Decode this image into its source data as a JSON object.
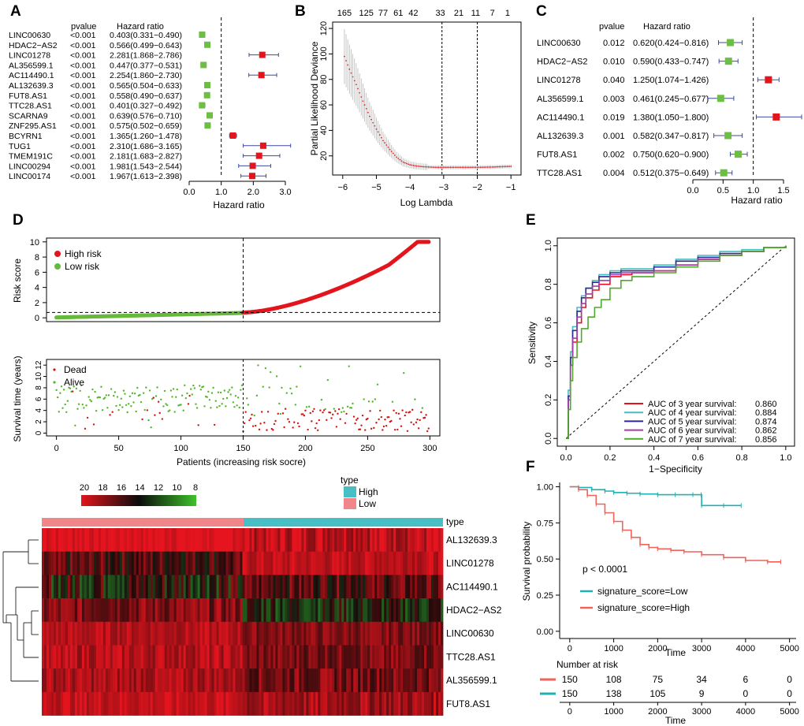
{
  "panel_labels": [
    "A",
    "B",
    "C",
    "D",
    "E",
    "F"
  ],
  "chart_data": [
    {
      "id": "A",
      "type": "forest",
      "header_pvalue": "pvalue",
      "header_hr": "Hazard ratio",
      "xlabel": "Hazard ratio",
      "xlim": [
        0,
        3
      ],
      "xticks": [
        "0.0",
        "1.0",
        "2.0",
        "3.0"
      ],
      "ref_line": 1,
      "rows": [
        {
          "gene": "LINC00630",
          "pvalue": "<0.001",
          "hr_text": "0.403(0.331−0.490)",
          "hr": 0.403,
          "lo": 0.331,
          "hi": 0.49
        },
        {
          "gene": "HDAC2−AS2",
          "pvalue": "<0.001",
          "hr_text": "0.566(0.499−0.643)",
          "hr": 0.566,
          "lo": 0.499,
          "hi": 0.643
        },
        {
          "gene": "LINC01278",
          "pvalue": "<0.001",
          "hr_text": "2.281(1.868−2.786)",
          "hr": 2.281,
          "lo": 1.868,
          "hi": 2.786
        },
        {
          "gene": "AL356599.1",
          "pvalue": "<0.001",
          "hr_text": "0.447(0.377−0.531)",
          "hr": 0.447,
          "lo": 0.377,
          "hi": 0.531
        },
        {
          "gene": "AC114490.1",
          "pvalue": "<0.001",
          "hr_text": "2.254(1.860−2.730)",
          "hr": 2.254,
          "lo": 1.86,
          "hi": 2.73
        },
        {
          "gene": "AL132639.3",
          "pvalue": "<0.001",
          "hr_text": "0.565(0.504−0.633)",
          "hr": 0.565,
          "lo": 0.504,
          "hi": 0.633
        },
        {
          "gene": "FUT8.AS1",
          "pvalue": "<0.001",
          "hr_text": "0.558(0.490−0.637)",
          "hr": 0.558,
          "lo": 0.49,
          "hi": 0.637
        },
        {
          "gene": "TTC28.AS1",
          "pvalue": "<0.001",
          "hr_text": "0.401(0.327−0.492)",
          "hr": 0.401,
          "lo": 0.327,
          "hi": 0.492
        },
        {
          "gene": "SCARNA9",
          "pvalue": "<0.001",
          "hr_text": "0.639(0.576−0.710)",
          "hr": 0.639,
          "lo": 0.576,
          "hi": 0.71
        },
        {
          "gene": "ZNF295.AS1",
          "pvalue": "<0.001",
          "hr_text": "0.575(0.502−0.659)",
          "hr": 0.575,
          "lo": 0.502,
          "hi": 0.659
        },
        {
          "gene": "BCYRN1",
          "pvalue": "<0.001",
          "hr_text": "1.365(1.260−1.478)",
          "hr": 1.365,
          "lo": 1.26,
          "hi": 1.478
        },
        {
          "gene": "TUG1",
          "pvalue": "<0.001",
          "hr_text": "2.310(1.686−3.165)",
          "hr": 2.31,
          "lo": 1.686,
          "hi": 3.165
        },
        {
          "gene": "TMEM191C",
          "pvalue": "<0.001",
          "hr_text": "2.181(1.683−2.827)",
          "hr": 2.181,
          "lo": 1.683,
          "hi": 2.827
        },
        {
          "gene": "LINC00294",
          "pvalue": "<0.001",
          "hr_text": "1.981(1.543−2.544)",
          "hr": 1.981,
          "lo": 1.543,
          "hi": 2.544
        },
        {
          "gene": "LINC00174",
          "pvalue": "<0.001",
          "hr_text": "1.967(1.613−2.398)",
          "hr": 1.967,
          "lo": 1.613,
          "hi": 2.398
        }
      ]
    },
    {
      "id": "B",
      "type": "line",
      "xlabel": "Log Lambda",
      "ylabel": "Partial Likelihood Deviance",
      "xlim": [
        -6.3,
        -0.7
      ],
      "ylim": [
        5,
        125
      ],
      "xticks": [
        -6,
        -5,
        -4,
        -3,
        -2,
        -1
      ],
      "yticks": [
        20,
        40,
        60,
        80,
        100,
        120
      ],
      "top_axis_labels": [
        "165",
        "125",
        "77",
        "61",
        "42",
        "33",
        "21",
        "11",
        "7",
        "1"
      ],
      "top_axis_x": [
        -5.95,
        -5.3,
        -4.8,
        -4.35,
        -3.9,
        -3.1,
        -2.55,
        -2.05,
        -1.55,
        -1.1
      ],
      "vlines": [
        -3.05,
        -2.0
      ],
      "curve_x": [
        -5.95,
        -5.8,
        -5.6,
        -5.4,
        -5.2,
        -5.0,
        -4.8,
        -4.6,
        -4.4,
        -4.2,
        -4.0,
        -3.8,
        -3.6,
        -3.4,
        -3.2,
        -3.0,
        -2.5,
        -2.0,
        -1.5,
        -1.0
      ],
      "curve_y": [
        98,
        88,
        76,
        63,
        51,
        41,
        32,
        25,
        19,
        15,
        13,
        12,
        11.5,
        11.2,
        11,
        11,
        11,
        11,
        11.3,
        11.8
      ]
    },
    {
      "id": "C",
      "type": "forest",
      "header_pvalue": "pvalue",
      "header_hr": "Hazard ratio",
      "xlabel": "Hazard ratio",
      "xlim": [
        0,
        1.8
      ],
      "xticks": [
        "0.0",
        "0.5",
        "1.0",
        "1.5"
      ],
      "ref_line": 1,
      "rows": [
        {
          "gene": "LINC00630",
          "pvalue": "0.012",
          "hr_text": "0.620(0.424−0.816)",
          "hr": 0.62,
          "lo": 0.424,
          "hi": 0.816
        },
        {
          "gene": "HDAC2−AS2",
          "pvalue": "0.010",
          "hr_text": "0.590(0.433−0.747)",
          "hr": 0.59,
          "lo": 0.433,
          "hi": 0.747
        },
        {
          "gene": "LINC01278",
          "pvalue": "0.040",
          "hr_text": "1.250(1.074−1.426)",
          "hr": 1.25,
          "lo": 1.074,
          "hi": 1.426
        },
        {
          "gene": "AL356599.1",
          "pvalue": "0.003",
          "hr_text": "0.461(0.245−0.677)",
          "hr": 0.461,
          "lo": 0.245,
          "hi": 0.677
        },
        {
          "gene": "AC114490.1",
          "pvalue": "0.019",
          "hr_text": "1.380(1.050−1.800)",
          "hr": 1.38,
          "lo": 1.05,
          "hi": 1.8
        },
        {
          "gene": "AL132639.3",
          "pvalue": "0.001",
          "hr_text": "0.582(0.347−0.817)",
          "hr": 0.582,
          "lo": 0.347,
          "hi": 0.817
        },
        {
          "gene": "FUT8.AS1",
          "pvalue": "0.002",
          "hr_text": "0.750(0.620−0.900)",
          "hr": 0.75,
          "lo": 0.62,
          "hi": 0.9
        },
        {
          "gene": "TTC28.AS1",
          "pvalue": "0.004",
          "hr_text": "0.512(0.375−0.649)",
          "hr": 0.512,
          "lo": 0.375,
          "hi": 0.649
        }
      ]
    },
    {
      "id": "D-risk",
      "type": "scatter",
      "ylabel": "Risk score",
      "ylim": [
        0,
        10
      ],
      "yticks": [
        0,
        2,
        4,
        6,
        8,
        10
      ],
      "n": 300,
      "cutoff": 150,
      "cutoff_score": 0.7,
      "legend": [
        "High risk",
        "Low risk"
      ]
    },
    {
      "id": "D-survival",
      "type": "scatter",
      "xlabel": "Patients (increasing risk socre)",
      "ylabel": "Survival time (years)",
      "xlim": [
        0,
        300
      ],
      "ylim": [
        0,
        12
      ],
      "xticks": [
        0,
        50,
        100,
        150,
        200,
        250,
        300
      ],
      "yticks": [
        0,
        2,
        4,
        6,
        8,
        10,
        12
      ],
      "legend": [
        "Dead",
        "Alive"
      ]
    },
    {
      "id": "D-heatmap",
      "type": "heatmap",
      "rows": [
        "AL132639.3",
        "LINC01278",
        "AC114490.1",
        "HDAC2−AS2",
        "LINC00630",
        "TTC28.AS1",
        "AL356599.1",
        "FUT8.AS1"
      ],
      "scale_ticks": [
        "20",
        "18",
        "16",
        "14",
        "12",
        "10",
        "8"
      ],
      "type_label": "type",
      "type_legend": [
        "High",
        "Low"
      ],
      "type_bar_label": "type"
    },
    {
      "id": "E",
      "type": "line",
      "xlabel": "1−Specificity",
      "ylabel": "Sensitivity",
      "xlim": [
        0,
        1
      ],
      "ylim": [
        0,
        1
      ],
      "xticks": [
        "0.0",
        "0.2",
        "0.4",
        "0.6",
        "0.8",
        "1.0"
      ],
      "yticks": [
        "0.0",
        "0.2",
        "0.4",
        "0.6",
        "0.8",
        "1.0"
      ],
      "series": [
        {
          "name": "AUC of 3 year survival:",
          "auc": "0.860",
          "color": "#e8101c",
          "x": [
            0,
            0.01,
            0.02,
            0.03,
            0.05,
            0.07,
            0.09,
            0.12,
            0.15,
            0.2,
            0.25,
            0.3,
            0.4,
            0.5,
            0.6,
            0.7,
            0.8,
            0.9,
            1
          ],
          "y": [
            0,
            0.2,
            0.38,
            0.5,
            0.6,
            0.68,
            0.73,
            0.77,
            0.8,
            0.84,
            0.85,
            0.86,
            0.87,
            0.9,
            0.93,
            0.95,
            0.97,
            0.99,
            1
          ]
        },
        {
          "name": "AUC of 4 year survival:",
          "auc": "0.884",
          "color": "#47bdbf",
          "x": [
            0,
            0.01,
            0.02,
            0.03,
            0.05,
            0.07,
            0.09,
            0.12,
            0.15,
            0.2,
            0.25,
            0.3,
            0.4,
            0.5,
            0.6,
            0.7,
            0.8,
            0.9,
            1
          ],
          "y": [
            0,
            0.25,
            0.45,
            0.58,
            0.68,
            0.74,
            0.78,
            0.82,
            0.85,
            0.87,
            0.88,
            0.88,
            0.9,
            0.93,
            0.95,
            0.97,
            0.98,
            0.99,
            1
          ]
        },
        {
          "name": "AUC of 5 year survival:",
          "auc": "0.874",
          "color": "#2b2a92",
          "x": [
            0,
            0.01,
            0.02,
            0.03,
            0.05,
            0.07,
            0.09,
            0.12,
            0.15,
            0.2,
            0.25,
            0.3,
            0.4,
            0.5,
            0.6,
            0.7,
            0.8,
            0.9,
            1
          ],
          "y": [
            0,
            0.22,
            0.42,
            0.56,
            0.66,
            0.73,
            0.78,
            0.81,
            0.84,
            0.86,
            0.87,
            0.87,
            0.89,
            0.92,
            0.94,
            0.96,
            0.97,
            0.99,
            1
          ]
        },
        {
          "name": "AUC of 6 year survival:",
          "auc": "0.862",
          "color": "#a33ea8",
          "x": [
            0,
            0.01,
            0.02,
            0.03,
            0.05,
            0.07,
            0.09,
            0.12,
            0.15,
            0.2,
            0.25,
            0.3,
            0.4,
            0.5,
            0.6,
            0.7,
            0.8,
            0.9,
            1
          ],
          "y": [
            0,
            0.2,
            0.38,
            0.52,
            0.63,
            0.7,
            0.75,
            0.79,
            0.82,
            0.85,
            0.86,
            0.86,
            0.87,
            0.9,
            0.93,
            0.95,
            0.97,
            0.99,
            1
          ]
        },
        {
          "name": "AUC of 7 year survival:",
          "auc": "0.856",
          "color": "#4fa92d",
          "x": [
            0,
            0.01,
            0.02,
            0.03,
            0.05,
            0.07,
            0.1,
            0.13,
            0.16,
            0.2,
            0.25,
            0.3,
            0.4,
            0.5,
            0.6,
            0.7,
            0.8,
            0.9,
            1
          ],
          "y": [
            0,
            0.15,
            0.3,
            0.42,
            0.5,
            0.57,
            0.63,
            0.68,
            0.72,
            0.78,
            0.82,
            0.84,
            0.86,
            0.89,
            0.92,
            0.95,
            0.97,
            0.99,
            1
          ]
        }
      ]
    },
    {
      "id": "F",
      "type": "line",
      "xlabel": "Time",
      "ylabel": "Survival probability",
      "xlim": [
        0,
        5000
      ],
      "ylim": [
        0,
        1
      ],
      "xticks": [
        0,
        1000,
        2000,
        3000,
        4000,
        5000
      ],
      "yticks": [
        "0.00",
        "0.25",
        "0.50",
        "0.75",
        "1.00"
      ],
      "pvalue_text": "p < 0.0001",
      "series": [
        {
          "name": "signature_score=Low",
          "color": "#1fb2b4",
          "x": [
            0,
            200,
            500,
            800,
            1000,
            1300,
            1600,
            2000,
            2400,
            2800,
            2990,
            3000,
            3500,
            3900
          ],
          "y": [
            1,
            0.995,
            0.98,
            0.97,
            0.96,
            0.955,
            0.95,
            0.945,
            0.945,
            0.945,
            0.945,
            0.87,
            0.87,
            0.87
          ]
        },
        {
          "name": "signature_score=High",
          "color": "#f0625a",
          "x": [
            0,
            200,
            400,
            600,
            800,
            1000,
            1200,
            1400,
            1600,
            1800,
            2000,
            2300,
            2600,
            3000,
            3500,
            4000,
            4500,
            4800
          ],
          "y": [
            1,
            0.98,
            0.94,
            0.88,
            0.82,
            0.76,
            0.7,
            0.65,
            0.6,
            0.58,
            0.57,
            0.56,
            0.55,
            0.53,
            0.51,
            0.49,
            0.48,
            0.48
          ]
        }
      ],
      "risk_table": {
        "title": "Number at risk",
        "xlabel": "Time",
        "rows": [
          {
            "color": "#f0625a",
            "values": [
              "150",
              "108",
              "75",
              "34",
              "6",
              "0"
            ]
          },
          {
            "color": "#1fb2b4",
            "values": [
              "150",
              "138",
              "105",
              "9",
              "0",
              "0"
            ]
          }
        ]
      }
    }
  ]
}
